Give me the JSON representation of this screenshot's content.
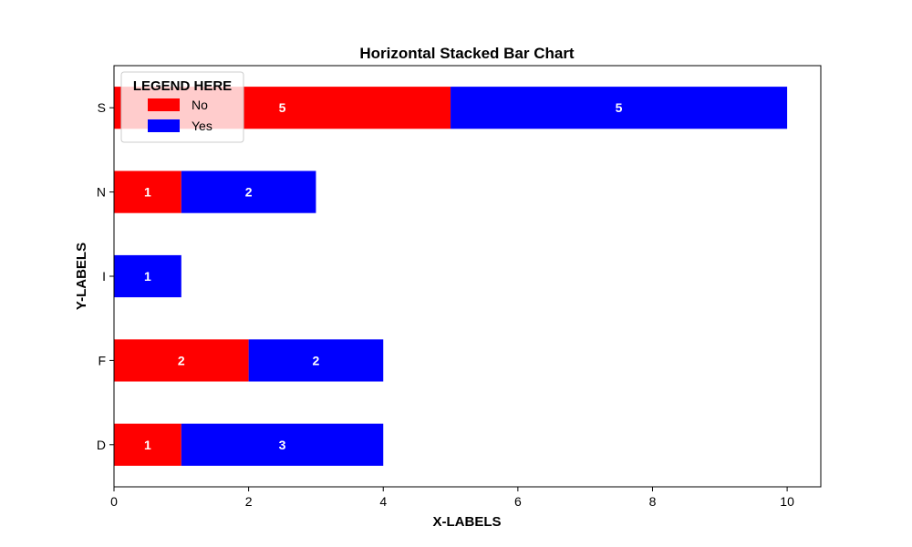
{
  "chart_data": {
    "type": "bar",
    "orientation": "horizontal",
    "stacked": true,
    "title": "Horizontal Stacked Bar Chart",
    "xlabel": "X-LABELS",
    "ylabel": "Y-LABELS",
    "categories": [
      "D",
      "F",
      "I",
      "N",
      "S"
    ],
    "series": [
      {
        "name": "No",
        "values": [
          1,
          2,
          0,
          1,
          5
        ],
        "color": "#ff0000"
      },
      {
        "name": "Yes",
        "values": [
          3,
          2,
          1,
          2,
          5
        ],
        "color": "#0000ff"
      }
    ],
    "xlim": [
      0,
      10.5
    ],
    "xticks": [
      0,
      2,
      4,
      6,
      8,
      10
    ],
    "grid": false,
    "legend": {
      "title": "LEGEND HERE",
      "position": "top-left"
    }
  }
}
